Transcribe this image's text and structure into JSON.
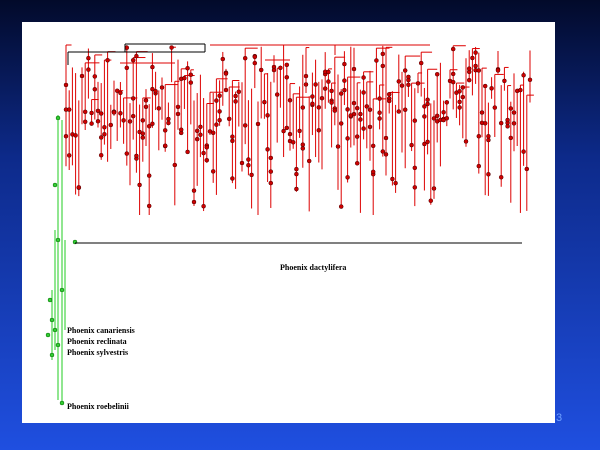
{
  "labels": {
    "main_clade": "Phoenix dactylifera",
    "species": [
      "Phoenix canariensis",
      "Phoenix reclinata",
      "Phoenix sylvestris",
      "Phoenix roebelinii"
    ]
  },
  "footer": {
    "page_number": "3"
  }
}
